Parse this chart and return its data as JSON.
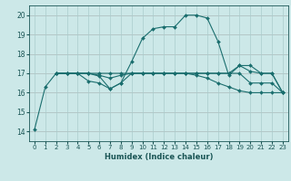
{
  "xlabel": "Humidex (Indice chaleur)",
  "xlim": [
    -0.5,
    23.5
  ],
  "ylim": [
    13.5,
    20.5
  ],
  "yticks": [
    14,
    15,
    16,
    17,
    18,
    19,
    20
  ],
  "xticks": [
    0,
    1,
    2,
    3,
    4,
    5,
    6,
    7,
    8,
    9,
    10,
    11,
    12,
    13,
    14,
    15,
    16,
    17,
    18,
    19,
    20,
    21,
    22,
    23
  ],
  "bg_color": "#cce8e8",
  "grid_color": "#aacccc",
  "line_color": "#1a6e6e",
  "lines": [
    [
      0,
      14.1,
      1,
      16.3,
      2,
      17.0,
      3,
      17.0,
      4,
      17.0,
      5,
      16.6,
      6,
      16.5,
      7,
      16.2,
      8,
      16.5,
      9,
      17.6,
      10,
      18.8,
      11,
      19.3,
      12,
      19.4,
      13,
      19.4,
      14,
      20.0,
      15,
      20.0,
      16,
      19.85,
      17,
      18.65,
      18,
      16.9,
      19,
      17.4,
      20,
      17.1,
      21,
      17.0,
      22,
      17.0,
      23,
      16.0
    ],
    [
      2,
      17.0,
      3,
      17.0,
      4,
      17.0,
      5,
      17.0,
      6,
      16.9,
      7,
      16.75,
      8,
      16.9,
      9,
      17.0,
      10,
      17.0,
      11,
      17.0,
      12,
      17.0,
      13,
      17.0,
      14,
      17.0,
      15,
      17.0,
      16,
      17.0,
      17,
      17.0,
      18,
      17.0,
      19,
      17.4,
      20,
      17.4,
      21,
      17.0,
      22,
      17.0,
      23,
      16.0
    ],
    [
      2,
      17.0,
      3,
      17.0,
      4,
      17.0,
      5,
      17.0,
      6,
      16.85,
      7,
      16.2,
      8,
      16.5,
      9,
      17.0,
      10,
      17.0,
      11,
      17.0,
      12,
      17.0,
      13,
      17.0,
      14,
      17.0,
      15,
      16.9,
      16,
      16.75,
      17,
      16.5,
      18,
      16.3,
      19,
      16.1,
      20,
      16.0,
      21,
      16.0,
      22,
      16.0,
      23,
      16.0
    ],
    [
      2,
      17.0,
      3,
      17.0,
      4,
      17.0,
      5,
      17.0,
      6,
      17.0,
      7,
      17.0,
      8,
      17.0,
      9,
      17.0,
      10,
      17.0,
      11,
      17.0,
      12,
      17.0,
      13,
      17.0,
      14,
      17.0,
      15,
      17.0,
      16,
      17.0,
      17,
      17.0,
      18,
      17.0,
      19,
      17.0,
      20,
      16.5,
      21,
      16.5,
      22,
      16.5,
      23,
      16.0
    ]
  ]
}
